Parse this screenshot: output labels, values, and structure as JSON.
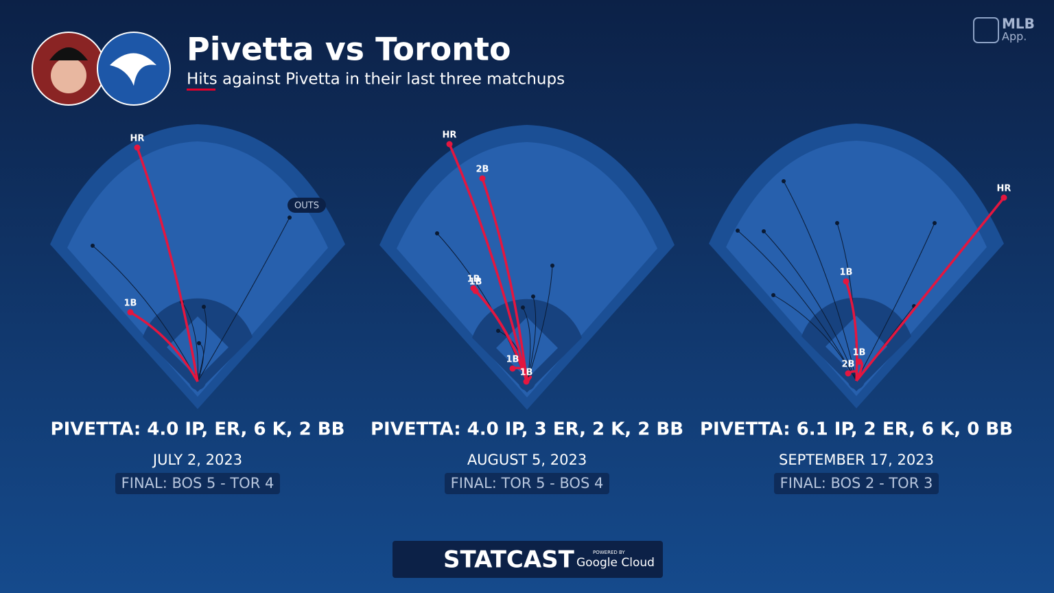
{
  "header": {
    "title": "Pivetta vs Toronto",
    "subtitle": "Hits against Pivetta in their last three matchups"
  },
  "logos": {
    "app": "MLB",
    "app_sub": "App.",
    "statcast": "STATCAST",
    "powered_by": "POWERED BY",
    "cloud": "Google Cloud"
  },
  "outs_label": "OUTS",
  "games": [
    {
      "hits": [
        "HR",
        "1B"
      ],
      "line": "PIVETTA: 4.0 IP, ER, 6 K, 2 BB",
      "date": "JULY 2, 2023",
      "final": "FINAL: BOS 5 - TOR 4"
    },
    {
      "hits": [
        "HR",
        "2B",
        "1B",
        "1B",
        "1B",
        "1B"
      ],
      "line": "PIVETTA: 4.0 IP, 3 ER, 2 K, 2 BB",
      "date": "AUGUST 5, 2023",
      "final": "FINAL: TOR 5 - BOS 4"
    },
    {
      "hits": [
        "HR",
        "1B",
        "1B",
        "2B"
      ],
      "line": "PIVETTA: 6.1 IP, 2 ER, 6 K, 0 BB",
      "date": "SEPTEMBER 17, 2023",
      "final": "FINAL: BOS 2 - TOR 3"
    }
  ]
}
